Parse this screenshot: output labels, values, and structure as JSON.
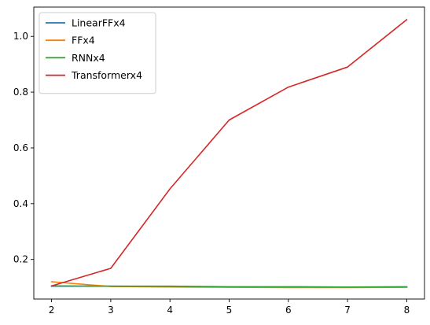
{
  "chart_data": {
    "type": "line",
    "title": "",
    "xlabel": "",
    "ylabel": "",
    "x": [
      2,
      3,
      4,
      5,
      6,
      7,
      8
    ],
    "xticks": [
      "2",
      "3",
      "4",
      "5",
      "6",
      "7",
      "8"
    ],
    "yticks": [
      "0.2",
      "0.4",
      "0.6",
      "0.8",
      "1.0"
    ],
    "xlim": [
      1.7,
      8.3
    ],
    "ylim": [
      0.058,
      1.105
    ],
    "grid": false,
    "legend_position": "top-left",
    "series": [
      {
        "name": "LinearFFx4",
        "color": "#1f77b4",
        "values": [
          0.104,
          0.104,
          0.103,
          0.101,
          0.1,
          0.1,
          0.101
        ]
      },
      {
        "name": "FFx4",
        "color": "#ff7f0e",
        "values": [
          0.12,
          0.103,
          0.101,
          0.1,
          0.099,
          0.099,
          0.1
        ]
      },
      {
        "name": "RNNx4",
        "color": "#2ca02c",
        "values": [
          0.105,
          0.104,
          0.104,
          0.102,
          0.102,
          0.101,
          0.102
        ]
      },
      {
        "name": "Transformerx4",
        "color": "#d62728",
        "values": [
          0.105,
          0.168,
          0.453,
          0.7,
          0.818,
          0.89,
          1.06
        ]
      }
    ]
  }
}
